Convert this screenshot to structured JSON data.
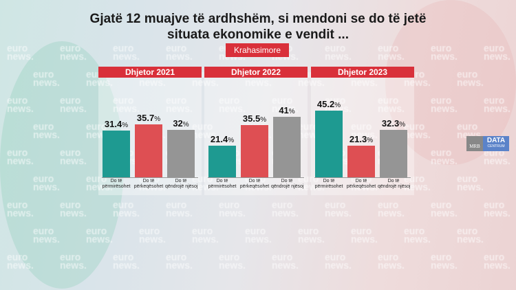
{
  "title_line1": "Gjatë 12 muajve të ardhshëm, si mendoni se do të jetë",
  "title_line2": "situata ekonomike e vendit ...",
  "badge": "Krahasimore",
  "watermark": "euro news.",
  "logo": {
    "left": "MRB",
    "right": "DATA",
    "right_sub": "CENTRUM"
  },
  "chart_data": [
    {
      "type": "bar",
      "title": "Dhjetor 2021",
      "categories": [
        "Do të përmirësohet",
        "Do të përkeqësohet",
        "Do të qëndrojë njësoj"
      ],
      "values": [
        31.4,
        35.7,
        32
      ],
      "labels": [
        "31.4",
        "35.7",
        "32"
      ],
      "unit": "%",
      "colors": [
        "#1e9a91",
        "#de4f53",
        "#959595"
      ]
    },
    {
      "type": "bar",
      "title": "Dhjetor 2022",
      "categories": [
        "Do të përmirësohet",
        "Do të përkeqësohet",
        "Do të qëndrojë njësoj"
      ],
      "values": [
        21.4,
        35.5,
        41
      ],
      "labels": [
        "21.4",
        "35.5",
        "41"
      ],
      "unit": "%",
      "colors": [
        "#1e9a91",
        "#de4f53",
        "#959595"
      ]
    },
    {
      "type": "bar",
      "title": "Dhjetor 2023",
      "categories": [
        "Do të përmirësohet",
        "Do të përkeqësohet",
        "Do të qëndrojë njësoj"
      ],
      "values": [
        45.2,
        21.3,
        32.3
      ],
      "labels": [
        "45.2",
        "21.3",
        "32.3"
      ],
      "unit": "%",
      "colors": [
        "#1e9a91",
        "#de4f53",
        "#959595"
      ]
    }
  ]
}
